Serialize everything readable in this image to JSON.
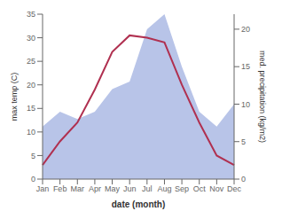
{
  "chart_data": {
    "type": "line",
    "categories": [
      "Jan",
      "Feb",
      "Mar",
      "Apr",
      "May",
      "Jun",
      "Jul",
      "Aug",
      "Sep",
      "Oct",
      "Nov",
      "Dec"
    ],
    "series": [
      {
        "type": "area",
        "axis": "y2",
        "color": "#b8c4e8",
        "values": [
          7.0,
          9.0,
          8.0,
          9.0,
          12.0,
          13.0,
          20.0,
          22.0,
          15.0,
          9.0,
          7.0,
          10.0
        ]
      },
      {
        "type": "line",
        "color": "#b03050",
        "values": [
          3.0,
          8.0,
          12.0,
          19.0,
          27.0,
          30.5,
          30.0,
          29.0,
          20.0,
          12.0,
          5.0,
          3.0
        ]
      }
    ],
    "xlabel": "date (month)",
    "ylabel": "max temp (C)",
    "y2label": "med. precipitation (kg/m2)",
    "ylim": [
      0,
      35
    ],
    "yticks": [
      0,
      5,
      10,
      15,
      20,
      25,
      30,
      35
    ],
    "y2lim": [
      0,
      22
    ],
    "y2ticks": [
      0,
      5,
      10,
      15,
      20
    ],
    "grid": false
  }
}
